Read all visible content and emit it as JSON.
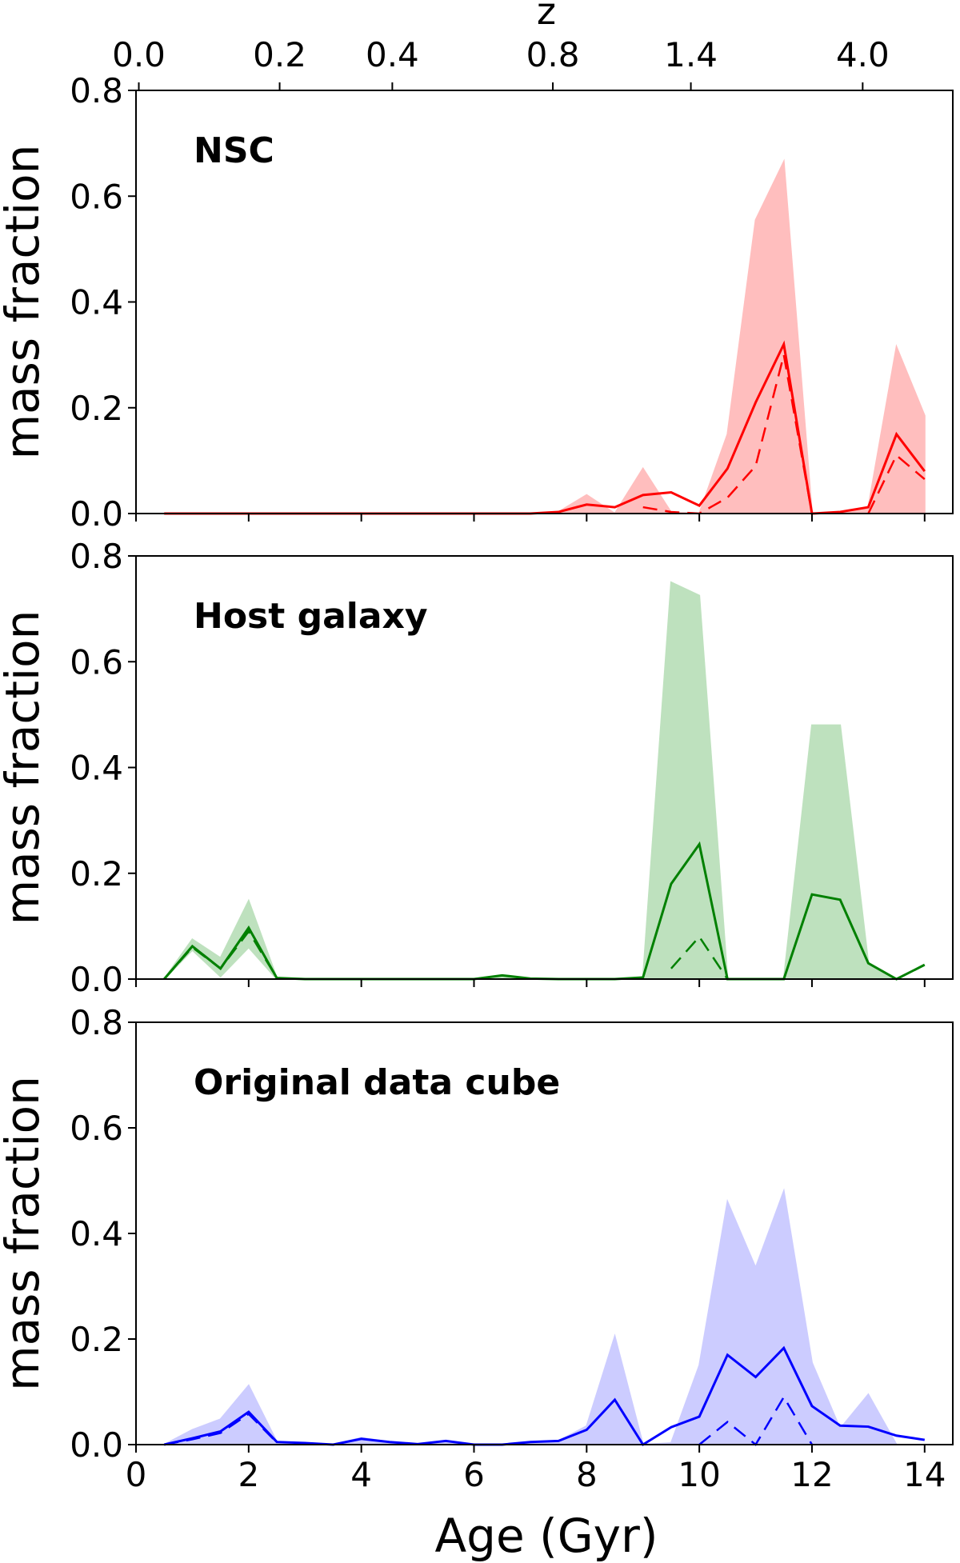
{
  "chart_data": {
    "type": "area",
    "xlabel": "Age (Gyr)",
    "top_axis_label": "z",
    "top_axis_ticks": [
      {
        "label": "0.0",
        "age": 0.05
      },
      {
        "label": "0.2",
        "age": 2.55
      },
      {
        "label": "0.4",
        "age": 4.55
      },
      {
        "label": "0.8",
        "age": 7.4
      },
      {
        "label": "1.4",
        "age": 9.85
      },
      {
        "label": "4.0",
        "age": 12.9
      }
    ],
    "xlim": [
      0,
      14.5
    ],
    "xticks": [
      "0",
      "2",
      "4",
      "6",
      "8",
      "10",
      "12",
      "14"
    ],
    "x": [
      0.5,
      1,
      1.5,
      2,
      2.5,
      3,
      3.5,
      4,
      4.5,
      5,
      5.5,
      6,
      6.5,
      7,
      7.5,
      8,
      8.5,
      9,
      9.5,
      10,
      10.5,
      11,
      11.5,
      12,
      12.5,
      13,
      13.5,
      14
    ],
    "panels": [
      {
        "title": "NSC",
        "ylabel": "mass fraction",
        "ylim": [
          0,
          0.8
        ],
        "yticks": [
          "0.0",
          "0.2",
          "0.4",
          "0.6",
          "0.8"
        ],
        "color": "#ff0000",
        "fill_color": "#ffb3b3",
        "solid": [
          0,
          0,
          0,
          0,
          0,
          0,
          0,
          0,
          0,
          0,
          0,
          0,
          0,
          0,
          0.003,
          0.017,
          0.012,
          0.035,
          0.04,
          0.015,
          0.085,
          0.21,
          0.32,
          0,
          0.003,
          0.012,
          0.15,
          0.08
        ],
        "dashed": [
          null,
          null,
          null,
          null,
          null,
          null,
          null,
          null,
          null,
          null,
          null,
          null,
          null,
          null,
          null,
          null,
          null,
          0.012,
          0.003,
          0,
          0.03,
          0.09,
          0.3,
          0,
          null,
          0,
          0.11,
          0.065
        ],
        "upper": [
          0,
          0,
          0,
          0,
          0,
          0,
          0,
          0,
          0,
          0,
          0,
          0,
          0,
          0,
          0.003,
          0.035,
          0,
          0.085,
          0.002,
          0,
          0.15,
          0.555,
          0.665,
          0,
          0,
          0.012,
          0.315,
          0.185
        ],
        "lower": [
          0,
          0,
          0,
          0,
          0,
          0,
          0,
          0,
          0,
          0,
          0,
          0,
          0,
          0,
          0,
          0,
          0,
          0,
          0,
          0,
          0,
          0,
          0,
          0,
          0,
          0,
          0,
          0
        ]
      },
      {
        "title": "Host galaxy",
        "ylabel": "mass fraction",
        "ylim": [
          0,
          0.8
        ],
        "yticks": [
          "0.0",
          "0.2",
          "0.4",
          "0.6",
          "0.8"
        ],
        "color": "#008000",
        "fill_color": "#b3dcb3",
        "solid": [
          0,
          0.062,
          0.02,
          0.097,
          0.002,
          0,
          0,
          0,
          0,
          0,
          0,
          0,
          0.007,
          0.001,
          0,
          0,
          0,
          0.003,
          0.18,
          0.255,
          0,
          0,
          0,
          0.16,
          0.15,
          0.03,
          0,
          0.027
        ],
        "dashed": [
          0,
          0.06,
          0.02,
          0.09,
          0.002,
          null,
          null,
          null,
          null,
          null,
          null,
          null,
          null,
          null,
          null,
          null,
          null,
          null,
          0.02,
          0.08,
          0,
          null,
          null,
          null,
          null,
          null,
          null,
          null
        ],
        "upper": [
          0,
          0.075,
          0.04,
          0.148,
          0.002,
          0,
          0,
          0,
          0,
          0,
          0,
          0,
          0.007,
          0.001,
          0,
          0,
          0,
          0.003,
          0.75,
          0.725,
          0,
          0,
          0,
          0.48,
          0.48,
          0.03,
          0,
          0
        ],
        "lower": [
          0,
          0.055,
          0.005,
          0.06,
          0,
          0,
          0,
          0,
          0,
          0,
          0,
          0,
          0,
          0,
          0,
          0,
          0,
          0,
          0,
          0,
          0,
          0,
          0,
          0,
          0,
          0,
          0,
          0
        ]
      },
      {
        "title": "Original data cube",
        "ylabel": "mass fraction",
        "ylim": [
          0,
          0.8
        ],
        "yticks": [
          "0.0",
          "0.2",
          "0.4",
          "0.6",
          "0.8"
        ],
        "color": "#0000ff",
        "fill_color": "#c4c4ff",
        "solid": [
          0,
          0.012,
          0.025,
          0.062,
          0.005,
          0.003,
          0,
          0.011,
          0.005,
          0.001,
          0.007,
          0,
          0,
          0.005,
          0.007,
          0.028,
          0.085,
          0,
          0.033,
          0.053,
          0.17,
          0.128,
          0.183,
          0.073,
          0.036,
          0.034,
          0.017,
          0.009
        ],
        "dashed": [
          0,
          0.01,
          0.022,
          0.058,
          0.004,
          null,
          null,
          null,
          null,
          null,
          null,
          null,
          null,
          null,
          null,
          null,
          null,
          null,
          null,
          0,
          0.043,
          0,
          0.09,
          0,
          null,
          null,
          null,
          null
        ],
        "upper": [
          0,
          0.028,
          0.048,
          0.112,
          0.005,
          0.003,
          0,
          0.013,
          0.005,
          0.001,
          0.007,
          0,
          0,
          0.005,
          0.007,
          0.035,
          0.205,
          0,
          0.003,
          0.15,
          0.46,
          0.335,
          0.48,
          0.155,
          0.03,
          0.095,
          0,
          0
        ],
        "lower": [
          0,
          0,
          0,
          0,
          0,
          0,
          0,
          0,
          0,
          0,
          0,
          0,
          0,
          0,
          0,
          0,
          0,
          0,
          0,
          0,
          0,
          0,
          0,
          0,
          0,
          0,
          0,
          0
        ]
      }
    ]
  }
}
